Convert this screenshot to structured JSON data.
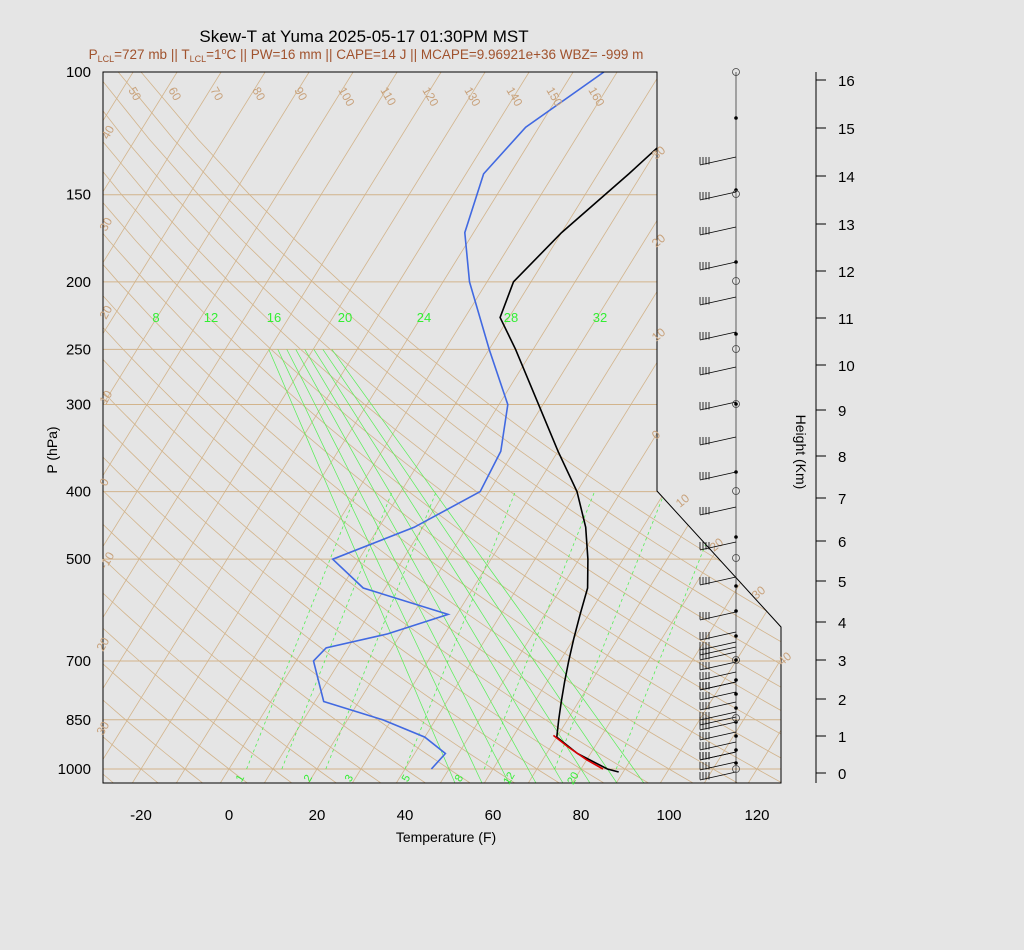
{
  "chart_data": {
    "type": "line",
    "title": "Skew-T at Yuma 2025-05-17 01:30PM MST",
    "subtitle": {
      "p_lcl_prefix": "P",
      "p_lcl_sub": "LCL",
      "p_lcl_value": "=727 mb || T",
      "t_lcl_sub": "LCL",
      "t_lcl_value": "=1",
      "t_lcl_deg": "o",
      "rest": "C || PW=16 mm || CAPE=14 J || MCAPE=9.96921e+36 WBZ= -999 m"
    },
    "xlabel": "Temperature (F)",
    "ylabel": "P (hPa)",
    "y2label": "Height (Km)",
    "x_ticks": [
      "-20",
      "0",
      "20",
      "40",
      "60",
      "80",
      "100",
      "120"
    ],
    "x_tick_values": [
      -20,
      0,
      20,
      40,
      60,
      80,
      100,
      120
    ],
    "p_ticks": [
      "100",
      "150",
      "200",
      "250",
      "300",
      "400",
      "500",
      "700",
      "850",
      "1000"
    ],
    "p_tick_values": [
      100,
      150,
      200,
      250,
      300,
      400,
      500,
      700,
      850,
      1000
    ],
    "height_ticks": [
      "0",
      "1",
      "2",
      "3",
      "4",
      "5",
      "6",
      "7",
      "8",
      "9",
      "10",
      "11",
      "12",
      "13",
      "14",
      "15",
      "16"
    ],
    "series": [
      {
        "name": "Temperature",
        "color": "#000000",
        "points": [
          {
            "p": 1010,
            "t": 89
          },
          {
            "p": 1000,
            "t": 86
          },
          {
            "p": 950,
            "t": 77
          },
          {
            "p": 900,
            "t": 70
          },
          {
            "p": 850,
            "t": 68
          },
          {
            "p": 800,
            "t": 66
          },
          {
            "p": 750,
            "t": 64
          },
          {
            "p": 700,
            "t": 62
          },
          {
            "p": 650,
            "t": 60
          },
          {
            "p": 600,
            "t": 58
          },
          {
            "p": 550,
            "t": 56
          },
          {
            "p": 500,
            "t": 52
          },
          {
            "p": 450,
            "t": 47
          },
          {
            "p": 400,
            "t": 40
          },
          {
            "p": 350,
            "t": 30
          },
          {
            "p": 300,
            "t": 19
          },
          {
            "p": 250,
            "t": 6
          },
          {
            "p": 225,
            "t": -2
          },
          {
            "p": 200,
            "t": -4
          },
          {
            "p": 170,
            "t": 0
          },
          {
            "p": 140,
            "t": 7
          },
          {
            "p": 120,
            "t": 12
          },
          {
            "p": 100,
            "t": 17
          }
        ]
      },
      {
        "name": "Dewpoint",
        "color": "#4169e1",
        "points": [
          {
            "p": 1000,
            "t": 46
          },
          {
            "p": 950,
            "t": 47
          },
          {
            "p": 900,
            "t": 40
          },
          {
            "p": 850,
            "t": 28
          },
          {
            "p": 800,
            "t": 12
          },
          {
            "p": 700,
            "t": 4
          },
          {
            "p": 670,
            "t": 5
          },
          {
            "p": 640,
            "t": 17
          },
          {
            "p": 600,
            "t": 28
          },
          {
            "p": 550,
            "t": 5
          },
          {
            "p": 500,
            "t": -6
          },
          {
            "p": 450,
            "t": 8
          },
          {
            "p": 400,
            "t": 18
          },
          {
            "p": 350,
            "t": 17
          },
          {
            "p": 300,
            "t": 12
          },
          {
            "p": 250,
            "t": 0
          },
          {
            "p": 200,
            "t": -14
          },
          {
            "p": 170,
            "t": -22
          },
          {
            "p": 140,
            "t": -26
          },
          {
            "p": 120,
            "t": -23
          },
          {
            "p": 100,
            "t": -13
          }
        ]
      },
      {
        "name": "Parcel",
        "color": "#dd0000",
        "points": [
          {
            "p": 1000,
            "t": 85
          },
          {
            "p": 970,
            "t": 80
          },
          {
            "p": 930,
            "t": 74
          },
          {
            "p": 895,
            "t": 69
          }
        ]
      }
    ],
    "isotherm_labels": [
      "40",
      "30",
      "20",
      "10",
      "0",
      "-10",
      "20",
      "30",
      "50",
      "60",
      "70",
      "80",
      "90",
      "100",
      "110",
      "120",
      "130",
      "140",
      "150",
      "160",
      "30",
      "20",
      "10",
      "0",
      "10",
      "20",
      "30",
      "40"
    ],
    "mixing_ratio_labels_top": [
      "8",
      "12",
      "16",
      "20",
      "24",
      "28",
      "32"
    ],
    "mixing_ratio_labels_bottom": [
      "1",
      "2",
      "3",
      "5",
      "8",
      "12",
      "20"
    ],
    "wind_barbs": "present at right edge from 0 to 16 km",
    "grid": true,
    "colors": {
      "background": "#e5e5e5",
      "plot_bg": "#e5e5e5",
      "isotherm": "#d2b48c",
      "mixing_ratio": "#33ee33",
      "subtitle": "#a0522d"
    }
  }
}
